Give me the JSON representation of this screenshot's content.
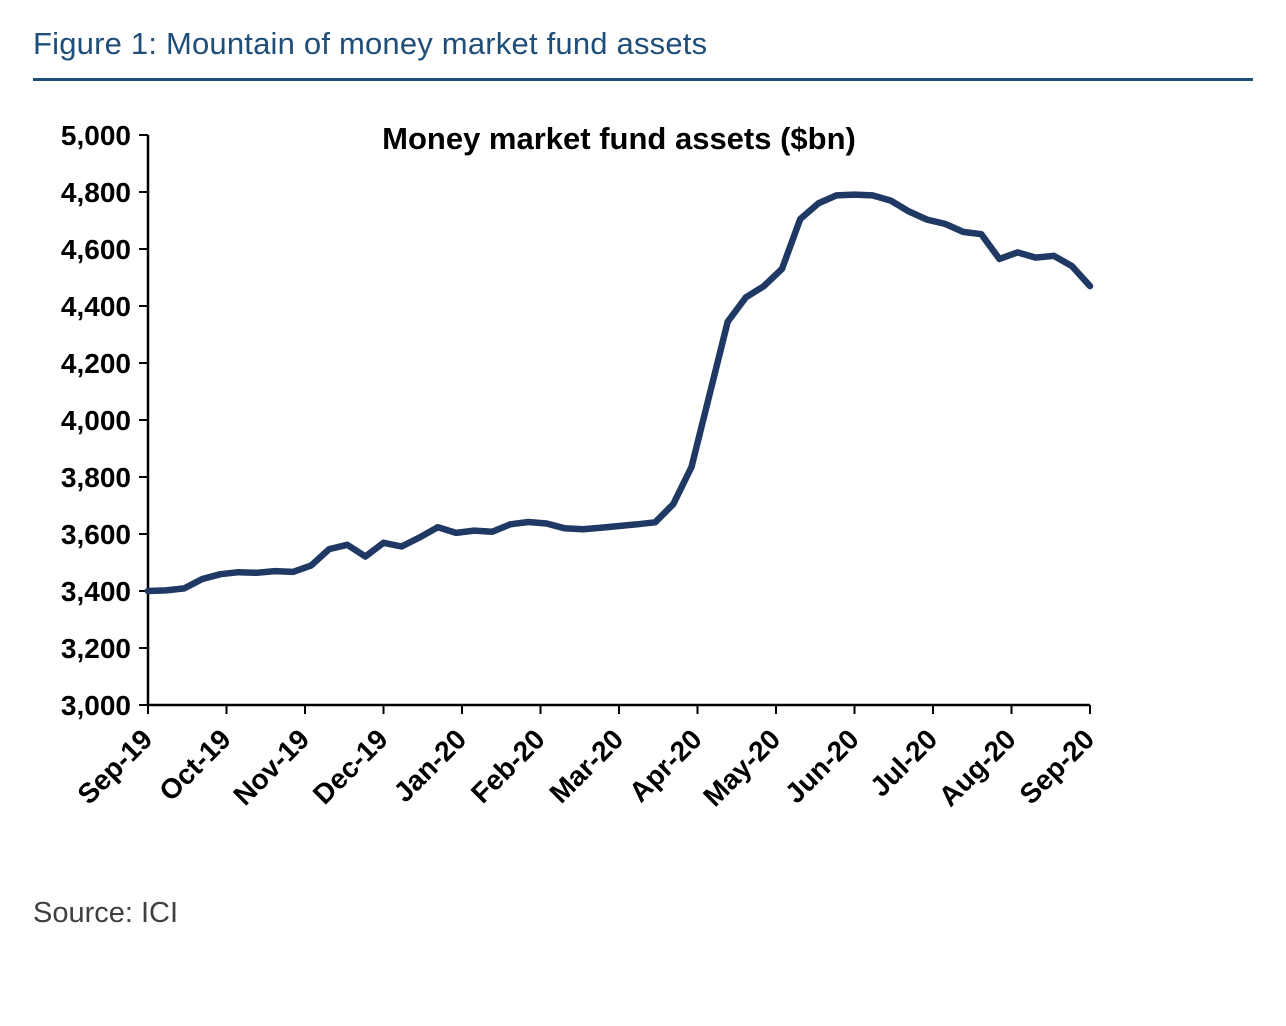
{
  "header": {
    "title": "Figure 1: Mountain of money market fund assets"
  },
  "footer": {
    "source": "Source: ICI"
  },
  "colors": {
    "accent_blue": "#1f4e79",
    "line_navy": "#1f3864",
    "axis_black": "#000000",
    "source_text": "#404040"
  },
  "chart_data": {
    "type": "line",
    "title": "Money market fund assets ($bn)",
    "xlabel": "",
    "ylabel": "",
    "ylim": [
      3000,
      5000
    ],
    "y_tick_step": 200,
    "y_tick_labels": [
      "3,000",
      "3,200",
      "3,400",
      "3,600",
      "3,800",
      "4,000",
      "4,200",
      "4,400",
      "4,600",
      "4,800",
      "5,000"
    ],
    "x_labels": [
      "Sep-19",
      "Oct-19",
      "Nov-19",
      "Dec-19",
      "Jan-20",
      "Feb-20",
      "Mar-20",
      "Apr-20",
      "May-20",
      "Jun-20",
      "Jul-20",
      "Aug-20",
      "Sep-20"
    ],
    "grid": false,
    "legend": "none",
    "line_color": "#1f3864",
    "series": [
      {
        "name": "Money market fund assets ($bn)",
        "frequency": "weekly",
        "values": [
          3400,
          3402,
          3409,
          3442,
          3459,
          3466,
          3464,
          3470,
          3467,
          3489,
          3547,
          3562,
          3521,
          3569,
          3556,
          3588,
          3624,
          3604,
          3612,
          3608,
          3634,
          3642,
          3637,
          3620,
          3617,
          3622,
          3628,
          3634,
          3641,
          3705,
          3835,
          4090,
          4345,
          4430,
          4470,
          4530,
          4705,
          4760,
          4788,
          4791,
          4788,
          4770,
          4732,
          4703,
          4688,
          4660,
          4652,
          4565,
          4588,
          4570,
          4576,
          4540,
          4470
        ]
      }
    ]
  }
}
